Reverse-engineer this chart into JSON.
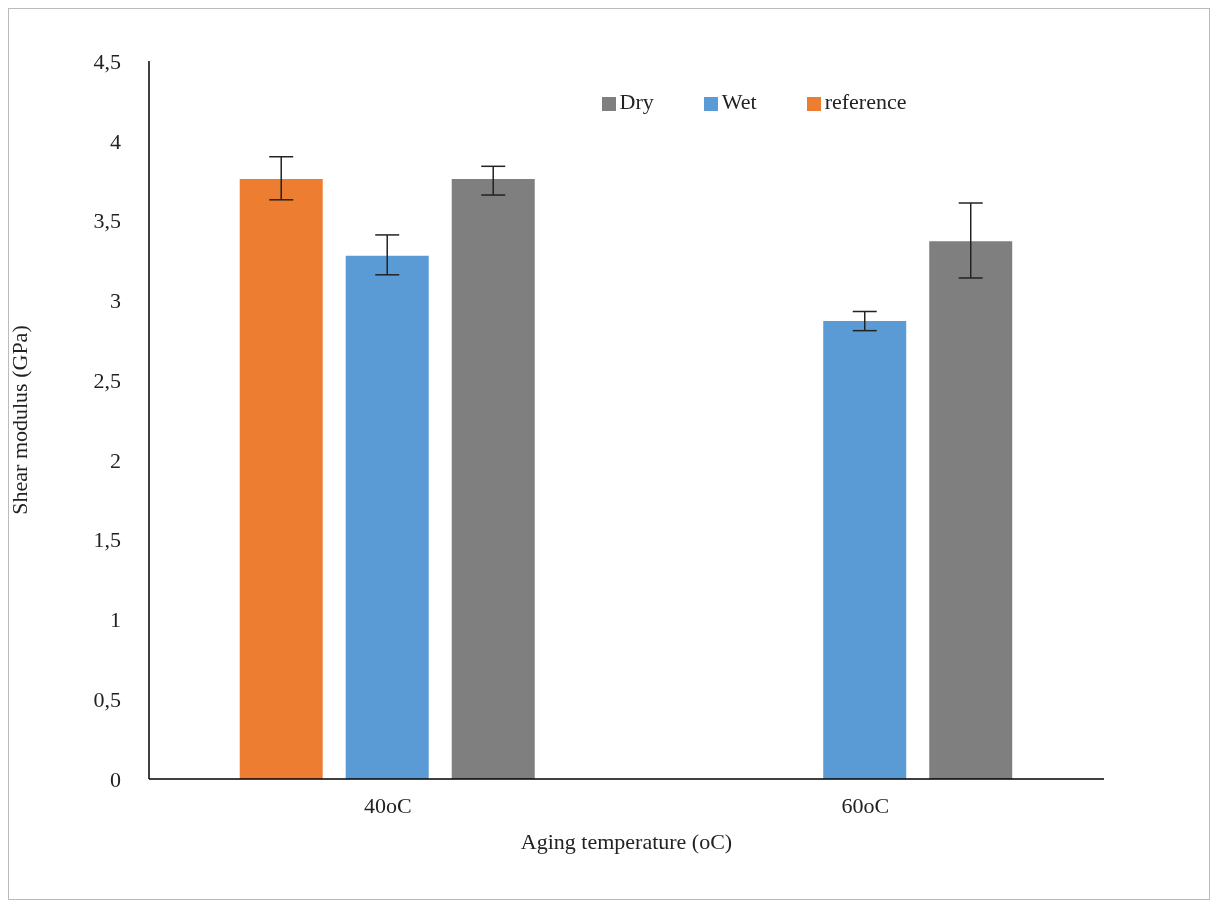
{
  "chart_data": {
    "type": "bar",
    "xlabel": "Aging temperature (oC)",
    "ylabel": "Shear modulus (GPa)",
    "categories": [
      "40oC",
      "60oC"
    ],
    "series": [
      {
        "name": "reference",
        "color": "#ed7d31",
        "values": [
          3.76,
          null
        ],
        "errors": [
          [
            3.63,
            3.9
          ],
          null
        ]
      },
      {
        "name": "Wet",
        "color": "#5b9bd5",
        "values": [
          3.28,
          2.87
        ],
        "errors": [
          [
            3.16,
            3.41
          ],
          [
            2.81,
            2.93
          ]
        ]
      },
      {
        "name": "Dry",
        "color": "#7f7f7f",
        "values": [
          3.76,
          3.37
        ],
        "errors": [
          [
            3.66,
            3.84
          ],
          [
            3.14,
            3.61
          ]
        ]
      }
    ],
    "ylim": [
      0,
      4.5
    ],
    "yticks": [
      0,
      {
        "value": 0.5,
        "label": "0,5"
      },
      1,
      {
        "value": 1.5,
        "label": "1,5"
      },
      2,
      {
        "value": 2.5,
        "label": "2,5"
      },
      3,
      {
        "value": 3.5,
        "label": "3,5"
      },
      4,
      {
        "value": 4.5,
        "label": "4,5"
      }
    ],
    "legend": "top",
    "grid": false
  }
}
